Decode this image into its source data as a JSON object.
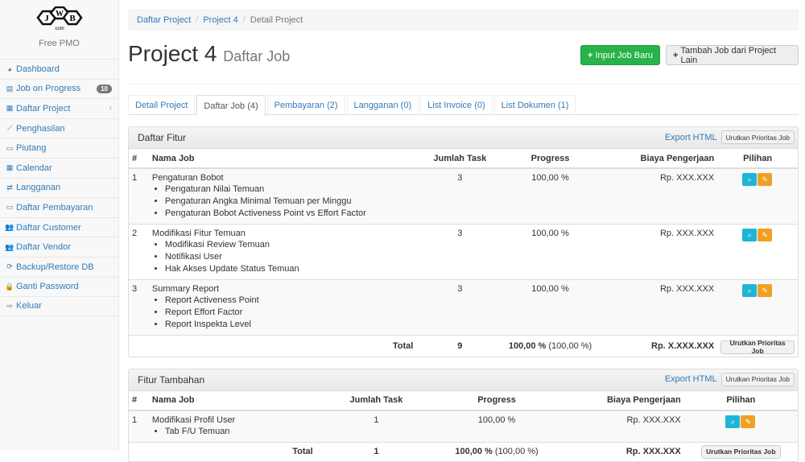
{
  "sidebar": {
    "logo_text": "JWB",
    "logo_sub": "com",
    "brand": "Free PMO",
    "items": [
      {
        "label": "Dashboard",
        "icon": "dashboard-icon",
        "glyph": "◕"
      },
      {
        "label": "Job on Progress",
        "icon": "tasks-icon",
        "glyph": "▤",
        "badge": "10"
      },
      {
        "label": "Daftar Project",
        "icon": "table-icon",
        "glyph": "▦",
        "chevron": "‹"
      },
      {
        "label": "Penghasilan",
        "icon": "line-chart-icon",
        "glyph": "⟋"
      },
      {
        "label": "Piutang",
        "icon": "money-icon",
        "glyph": "▭"
      },
      {
        "label": "Calendar",
        "icon": "calendar-icon",
        "glyph": "▦"
      },
      {
        "label": "Langganan",
        "icon": "retweet-icon",
        "glyph": "⇄"
      },
      {
        "label": "Daftar Pembayaran",
        "icon": "money-icon",
        "glyph": "▭"
      },
      {
        "label": "Daftar Customer",
        "icon": "users-icon",
        "glyph": "👥"
      },
      {
        "label": "Daftar Vendor",
        "icon": "users-icon",
        "glyph": "👥"
      },
      {
        "label": "Backup/Restore DB",
        "icon": "refresh-icon",
        "glyph": "⟳"
      },
      {
        "label": "Ganti Password",
        "icon": "lock-icon",
        "glyph": "🔒"
      },
      {
        "label": "Keluar",
        "icon": "sign-out-icon",
        "glyph": "⇨"
      }
    ]
  },
  "breadcrumb": [
    "Daftar Project",
    "Project 4",
    "Detail Project"
  ],
  "header": {
    "title": "Project 4",
    "subtitle": "Daftar Job",
    "btn_input": "Input Job Baru",
    "btn_tambah": "Tambah Job dari Project Lain"
  },
  "tabs": [
    {
      "label": "Detail Project"
    },
    {
      "label": "Daftar Job (4)",
      "active": true
    },
    {
      "label": "Pembayaran (2)"
    },
    {
      "label": "Langganan (0)"
    },
    {
      "label": "List Invoice (0)"
    },
    {
      "label": "List Dokumen (1)"
    }
  ],
  "colors": {
    "green": "#28b34a",
    "info": "#1fb5d6",
    "warning": "#f0a025",
    "link": "#337ab7"
  },
  "panels": [
    {
      "title": "Daftar Fitur",
      "export": "Export HTML",
      "sort": "Urutkan Prioritas Job",
      "columns": [
        "#",
        "Nama Job",
        "Jumlah Task",
        "Progress",
        "Biaya Pengerjaan",
        "Pilihan"
      ],
      "rows": [
        {
          "no": "1",
          "name": "Pengaturan Bobot",
          "subs": [
            "Pengaturan Nilai Temuan",
            "Pengaturan Angka Minimal Temuan per Minggu",
            "Pengaturan Bobot Activeness Point vs Effort Factor"
          ],
          "tasks": "3",
          "progress": "100,00 %",
          "cost": "Rp. XXX.XXX"
        },
        {
          "no": "2",
          "name": "Modifikasi Fitur Temuan",
          "subs": [
            "Modifikasi Review Temuan",
            "Notifikasi User",
            "Hak Akses Update Status Temuan"
          ],
          "tasks": "3",
          "progress": "100,00 %",
          "cost": "Rp. XXX.XXX"
        },
        {
          "no": "3",
          "name": "Summary Report",
          "subs": [
            "Report Activeness Point",
            "Report Effort Factor",
            "Report Inspekta Level"
          ],
          "tasks": "3",
          "progress": "100,00 %",
          "cost": "Rp. XXX.XXX"
        }
      ],
      "total": {
        "label": "Total",
        "tasks": "9",
        "progress": "100,00 %",
        "progress_sub": "(100,00 %)",
        "cost": "Rp. X.XXX.XXX",
        "sort": "Urutkan Prioritas Job"
      }
    },
    {
      "title": "Fitur Tambahan",
      "export": "Export HTML",
      "sort": "Urutkan Prioritas Job",
      "columns": [
        "#",
        "Nama Job",
        "Jumlah Task",
        "Progress",
        "Biaya Pengerjaan",
        "Pilihan"
      ],
      "rows": [
        {
          "no": "1",
          "name": "Modifikasi Profil User",
          "subs": [
            "Tab F/U Temuan"
          ],
          "tasks": "1",
          "progress": "100,00 %",
          "cost": "Rp. XXX.XXX"
        }
      ],
      "total": {
        "label": "Total",
        "tasks": "1",
        "progress": "100,00 %",
        "progress_sub": "(100,00 %)",
        "cost": "Rp. XXX.XXX",
        "sort": "Urutkan Prioritas Job"
      }
    }
  ]
}
